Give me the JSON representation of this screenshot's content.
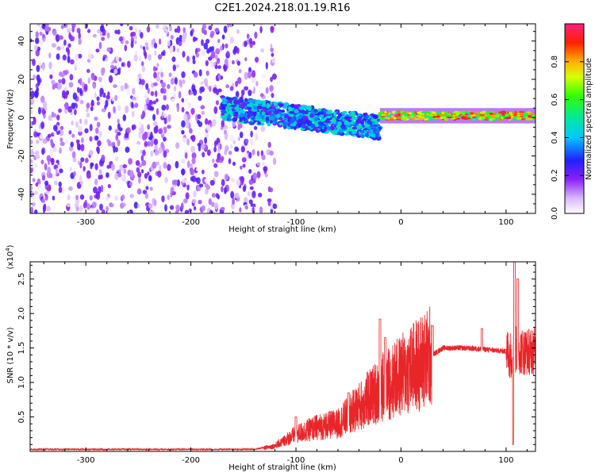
{
  "figure_title": "C2E1.2024.218.01.19.R16",
  "colors": {
    "frame": "#000000",
    "snr_line": "#e8262a",
    "spectrogram_base": "#7a00f0"
  },
  "chart_data": [
    {
      "type": "heatmap",
      "title": "",
      "xlabel": "Height of straight line (km)",
      "ylabel": "Frequency (Hz)",
      "xlim": [
        -353,
        128
      ],
      "ylim": [
        -50,
        49
      ],
      "xticks": [
        -300,
        -200,
        -100,
        0,
        100
      ],
      "xtick_labels": [
        "-300",
        "-200",
        "-100",
        "0",
        "100"
      ],
      "yticks": [
        -40,
        -20,
        0,
        20,
        40
      ],
      "ytick_labels": [
        "-40",
        "-20",
        "0",
        "20",
        "40"
      ],
      "colorbar": {
        "label": "Normalized spectral amplitude",
        "range": [
          0.0,
          1.0
        ],
        "ticks": [
          0.0,
          0.2,
          0.4,
          0.6,
          0.8
        ],
        "tick_labels": [
          "0.0",
          "0.2",
          "0.4",
          "0.6",
          "0.8"
        ],
        "colormap": "rainbow (white→violet→blue→cyan→green→yellow→red→pink)"
      },
      "regions": [
        {
          "description": "broadband noise",
          "x_range": [
            -353,
            -140
          ],
          "freq_range": [
            -50,
            49
          ],
          "amplitude_range": [
            0.0,
            0.25
          ]
        },
        {
          "description": "scattered echo band",
          "x_range": [
            -170,
            -20
          ],
          "freq_center": [
            5,
            -5
          ],
          "freq_halfwidth": 6,
          "amplitude_range": [
            0.2,
            0.5
          ]
        },
        {
          "description": "narrow echo line",
          "x_range": [
            -20,
            128
          ],
          "freq_center": 1,
          "freq_halfwidth": 2,
          "amplitude_range": [
            0.5,
            0.95
          ]
        }
      ],
      "grid": false
    },
    {
      "type": "line",
      "title": "",
      "xlabel": "Height of straight line (km)",
      "ylabel": "SNR (10 * v/v)",
      "y_multiplier_label": "(x10",
      "y_multiplier_exp": "4",
      "y_multiplier_close": ")",
      "xlim": [
        -353,
        128
      ],
      "ylim": [
        0,
        27500
      ],
      "xticks": [
        -300,
        -200,
        -100,
        0,
        100
      ],
      "xtick_labels": [
        "-300",
        "-200",
        "-100",
        "0",
        "100"
      ],
      "yticks": [
        5000,
        10000,
        15000,
        20000,
        25000
      ],
      "ytick_labels": [
        "0.5",
        "1.0",
        "1.5",
        "2.0",
        "2.5"
      ],
      "series": [
        {
          "color": "#e8262a",
          "envelope_x": [
            -353,
            -140,
            -120,
            -100,
            -80,
            -60,
            -40,
            -20,
            0,
            20,
            40,
            60,
            80,
            100,
            105,
            110,
            115,
            128
          ],
          "envelope_y": [
            300,
            300,
            800,
            2500,
            3500,
            4000,
            6500,
            9000,
            11000,
            13000,
            15000,
            15000,
            14800,
            14500,
            14000,
            14800,
            14500,
            14500
          ],
          "spikes": [
            {
              "x": -100,
              "y": 5000
            },
            {
              "x": -50,
              "y": 8500
            },
            {
              "x": -20,
              "y": 19200
            },
            {
              "x": -15,
              "y": 16500
            },
            {
              "x": 30,
              "y": 18200
            },
            {
              "x": 77,
              "y": 17800
            },
            {
              "x": 107,
              "y": 1000
            },
            {
              "x": 108,
              "y": 27500
            },
            {
              "x": 111,
              "y": 25000
            }
          ]
        }
      ],
      "grid": false
    }
  ]
}
